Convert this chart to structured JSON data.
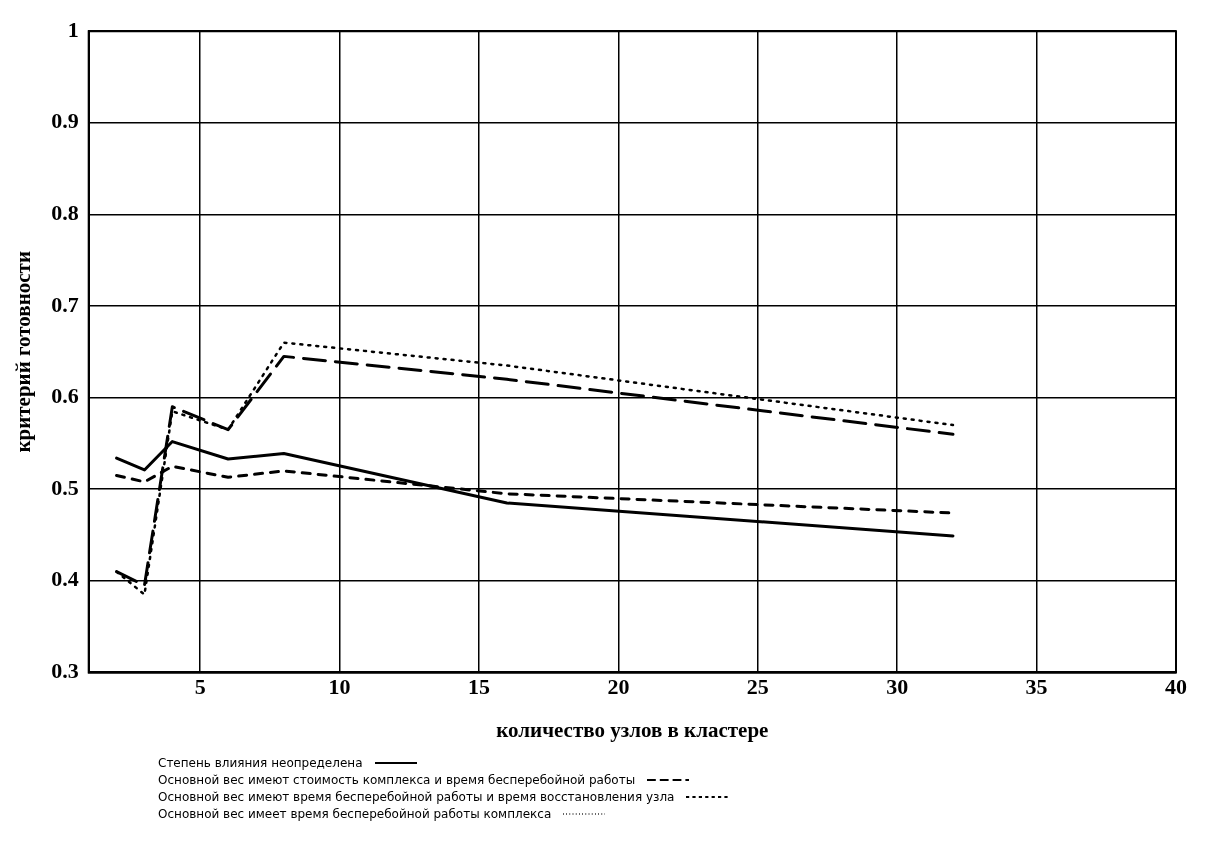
{
  "chart_data": {
    "type": "line",
    "xlabel": "количество узлов в кластере",
    "ylabel": "критерий готовности",
    "x": [
      2,
      3,
      4,
      6,
      8,
      16,
      32
    ],
    "xlim": [
      1,
      40
    ],
    "xticks": [
      5,
      10,
      15,
      20,
      25,
      30,
      35,
      40
    ],
    "ylim": [
      0.3,
      1
    ],
    "yticks": [
      0.3,
      0.4,
      0.5,
      0.6,
      0.7,
      0.8,
      0.9,
      1
    ],
    "grid": true,
    "legend": "bottom",
    "marker": "none",
    "series": [
      {
        "name": "Степень влияния неопределена",
        "color": "#000000",
        "line_style": "solid",
        "values": [
          0.534,
          0.521,
          0.552,
          0.533,
          0.539,
          0.485,
          0.449
        ]
      },
      {
        "name": "Основной вес имеют стоимость комплекса и время бесперебойной работы",
        "color": "#000000",
        "line_style": "dashed",
        "values": [
          0.41,
          0.395,
          0.59,
          0.565,
          0.645,
          0.62,
          0.56
        ]
      },
      {
        "name": "Основной вес имеют время бесперебойной работы и время восстановления узла",
        "color": "#000000",
        "line_style": "dashed",
        "values": [
          0.515,
          0.508,
          0.525,
          0.513,
          0.52,
          0.495,
          0.474
        ]
      },
      {
        "name": "Основной вес имеет время бесперебойной работы комплекса",
        "color": "#000000",
        "line_style": "dotted",
        "values": [
          0.41,
          0.385,
          0.585,
          0.565,
          0.66,
          0.635,
          0.57
        ]
      }
    ]
  }
}
